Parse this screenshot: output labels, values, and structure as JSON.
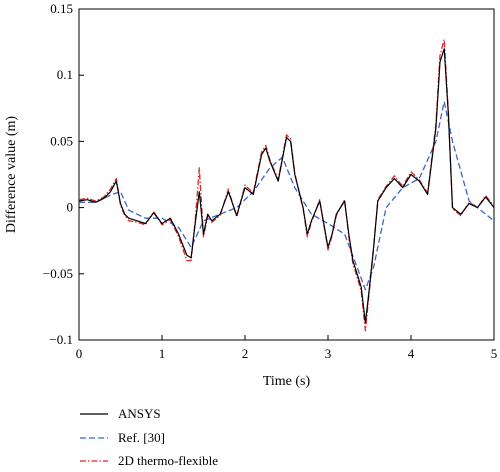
{
  "chart_data": {
    "type": "line",
    "title": "",
    "xlabel": "Time (s)",
    "ylabel": "Difference value (m)",
    "xlim": [
      0,
      5
    ],
    "ylim": [
      -0.1,
      0.15
    ],
    "xticks": [
      0,
      1,
      2,
      3,
      4,
      5
    ],
    "yticks": [
      -0.1,
      -0.05,
      0,
      0.05,
      0.1,
      0.15
    ],
    "xtick_labels": [
      "0",
      "1",
      "2",
      "3",
      "4",
      "5"
    ],
    "ytick_labels": [
      "−0.1",
      "−0.05",
      "0",
      "0.05",
      "0.1",
      "0.15"
    ],
    "grid": false,
    "legend_position": "bottom-left, below plot",
    "series": [
      {
        "name": "ANSYS",
        "color": "#000000",
        "style": "solid",
        "x": [
          0,
          0.1,
          0.2,
          0.3,
          0.38,
          0.45,
          0.5,
          0.55,
          0.6,
          0.7,
          0.8,
          0.9,
          1.0,
          1.1,
          1.2,
          1.3,
          1.35,
          1.4,
          1.45,
          1.5,
          1.55,
          1.6,
          1.7,
          1.8,
          1.9,
          2.0,
          2.1,
          2.2,
          2.25,
          2.3,
          2.4,
          2.5,
          2.55,
          2.6,
          2.7,
          2.75,
          2.8,
          2.9,
          3.0,
          3.05,
          3.1,
          3.2,
          3.25,
          3.3,
          3.4,
          3.45,
          3.5,
          3.55,
          3.6,
          3.7,
          3.8,
          3.9,
          4.0,
          4.1,
          4.2,
          4.3,
          4.35,
          4.4,
          4.45,
          4.5,
          4.6,
          4.7,
          4.8,
          4.9,
          5.0
        ],
        "values": [
          0.005,
          0.006,
          0.004,
          0.007,
          0.012,
          0.02,
          0.003,
          -0.005,
          -0.008,
          -0.01,
          -0.012,
          -0.004,
          -0.012,
          -0.008,
          -0.02,
          -0.036,
          -0.038,
          -0.012,
          0.012,
          -0.02,
          -0.005,
          -0.01,
          -0.005,
          0.012,
          -0.006,
          0.015,
          0.01,
          0.04,
          0.045,
          0.035,
          0.02,
          0.053,
          0.05,
          0.025,
          0.0,
          -0.02,
          -0.01,
          0.005,
          -0.03,
          -0.02,
          -0.005,
          0.005,
          -0.02,
          -0.04,
          -0.06,
          -0.087,
          -0.06,
          -0.03,
          0.005,
          0.015,
          0.022,
          0.015,
          0.025,
          0.02,
          0.01,
          0.06,
          0.11,
          0.12,
          0.07,
          0.0,
          -0.005,
          0.003,
          0.0,
          0.008,
          0.0
        ]
      },
      {
        "name": "Ref. [30]",
        "color": "#3b63c9",
        "style": "dashed",
        "x": [
          0,
          0.2,
          0.4,
          0.5,
          0.6,
          0.8,
          1.0,
          1.2,
          1.35,
          1.5,
          1.7,
          1.9,
          2.1,
          2.3,
          2.45,
          2.6,
          2.8,
          3.0,
          3.2,
          3.35,
          3.45,
          3.55,
          3.7,
          3.9,
          4.1,
          4.3,
          4.4,
          4.5,
          4.7,
          5.0
        ],
        "values": [
          0.004,
          0.004,
          0.01,
          0.012,
          -0.002,
          -0.008,
          -0.008,
          -0.015,
          -0.03,
          -0.01,
          -0.005,
          0.0,
          0.012,
          0.03,
          0.038,
          0.015,
          -0.005,
          -0.012,
          -0.02,
          -0.045,
          -0.062,
          -0.045,
          0.0,
          0.015,
          0.022,
          0.05,
          0.08,
          0.05,
          0.005,
          -0.01
        ]
      },
      {
        "name": "2D thermo-flexible",
        "color": "#e0262b",
        "style": "dashdot",
        "x": [
          0,
          0.1,
          0.2,
          0.3,
          0.38,
          0.45,
          0.5,
          0.55,
          0.6,
          0.7,
          0.8,
          0.9,
          1.0,
          1.1,
          1.2,
          1.3,
          1.35,
          1.4,
          1.45,
          1.5,
          1.55,
          1.6,
          1.7,
          1.8,
          1.9,
          2.0,
          2.1,
          2.2,
          2.25,
          2.3,
          2.4,
          2.5,
          2.55,
          2.6,
          2.7,
          2.75,
          2.8,
          2.9,
          3.0,
          3.05,
          3.1,
          3.2,
          3.25,
          3.3,
          3.4,
          3.45,
          3.5,
          3.55,
          3.6,
          3.7,
          3.8,
          3.9,
          4.0,
          4.1,
          4.2,
          4.3,
          4.35,
          4.4,
          4.45,
          4.5,
          4.6,
          4.7,
          4.8,
          4.9,
          5.0
        ],
        "values": [
          0.006,
          0.007,
          0.005,
          0.008,
          0.014,
          0.022,
          0.002,
          -0.006,
          -0.01,
          -0.011,
          -0.013,
          -0.003,
          -0.013,
          -0.009,
          -0.022,
          -0.04,
          -0.04,
          -0.01,
          0.03,
          -0.022,
          -0.006,
          -0.011,
          -0.006,
          0.014,
          -0.007,
          0.017,
          0.011,
          0.042,
          0.047,
          0.036,
          0.021,
          0.055,
          0.052,
          0.026,
          -0.001,
          -0.022,
          -0.011,
          0.006,
          -0.032,
          -0.021,
          -0.006,
          0.006,
          -0.022,
          -0.042,
          -0.063,
          -0.093,
          -0.062,
          -0.031,
          0.006,
          0.016,
          0.024,
          0.016,
          0.027,
          0.021,
          0.011,
          0.063,
          0.115,
          0.127,
          0.072,
          -0.001,
          -0.006,
          0.004,
          0.0,
          0.009,
          0.001
        ]
      }
    ]
  }
}
